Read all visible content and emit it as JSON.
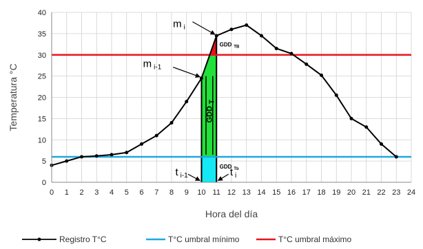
{
  "chart_data": {
    "type": "line",
    "xlabel": "Hora del día",
    "ylabel": "Temperatura °C",
    "xlim": [
      0,
      24
    ],
    "ylim": [
      0,
      40
    ],
    "xticks": [
      "0",
      "1",
      "2",
      "3",
      "4",
      "5",
      "6",
      "7",
      "8",
      "9",
      "10",
      "11",
      "12",
      "13",
      "14",
      "15",
      "16",
      "17",
      "18",
      "19",
      "20",
      "21",
      "22",
      "23",
      "24"
    ],
    "yticks": [
      "0",
      "5",
      "10",
      "15",
      "20",
      "25",
      "30",
      "35",
      "40"
    ],
    "grid": true,
    "legend_position": "bottom",
    "series": [
      {
        "name": "Registro T°C",
        "color": "#000000",
        "x": [
          0,
          1,
          2,
          3,
          4,
          5,
          6,
          7,
          8,
          9,
          10,
          11,
          12,
          13,
          14,
          15,
          16,
          17,
          18,
          19,
          20,
          21,
          22,
          23
        ],
        "y": [
          4,
          5,
          6,
          6.2,
          6.5,
          7,
          9,
          11,
          14,
          19,
          24.5,
          34.5,
          36,
          37,
          34.5,
          31.5,
          30.3,
          27.8,
          25.2,
          20.5,
          15,
          13,
          9,
          6
        ]
      },
      {
        "name": "T°C umbral mínimo",
        "color": "#1fa8e0",
        "y": 6
      },
      {
        "name": "T°C umbral máximo",
        "color": "#e8141c",
        "y": 30
      }
    ],
    "annotations": {
      "m_i": {
        "main": "m",
        "sub": "i"
      },
      "m_prev": {
        "main": "m",
        "sub": "i-1"
      },
      "t_prev": {
        "main": "t",
        "sub": "i-1"
      },
      "t_i": {
        "main": "t",
        "sub": "i"
      },
      "gdd_tb_upper": {
        "main": "GDD",
        "sub": "TB"
      },
      "gdd_t": {
        "main": "GDD",
        "sub": "T"
      },
      "gdd_tb_lower": {
        "main": "GDD",
        "sub": "Tb"
      }
    },
    "fill_colors": {
      "green": "#22e03a",
      "cyan": "#14e8f5",
      "red": "#e8141c"
    }
  }
}
